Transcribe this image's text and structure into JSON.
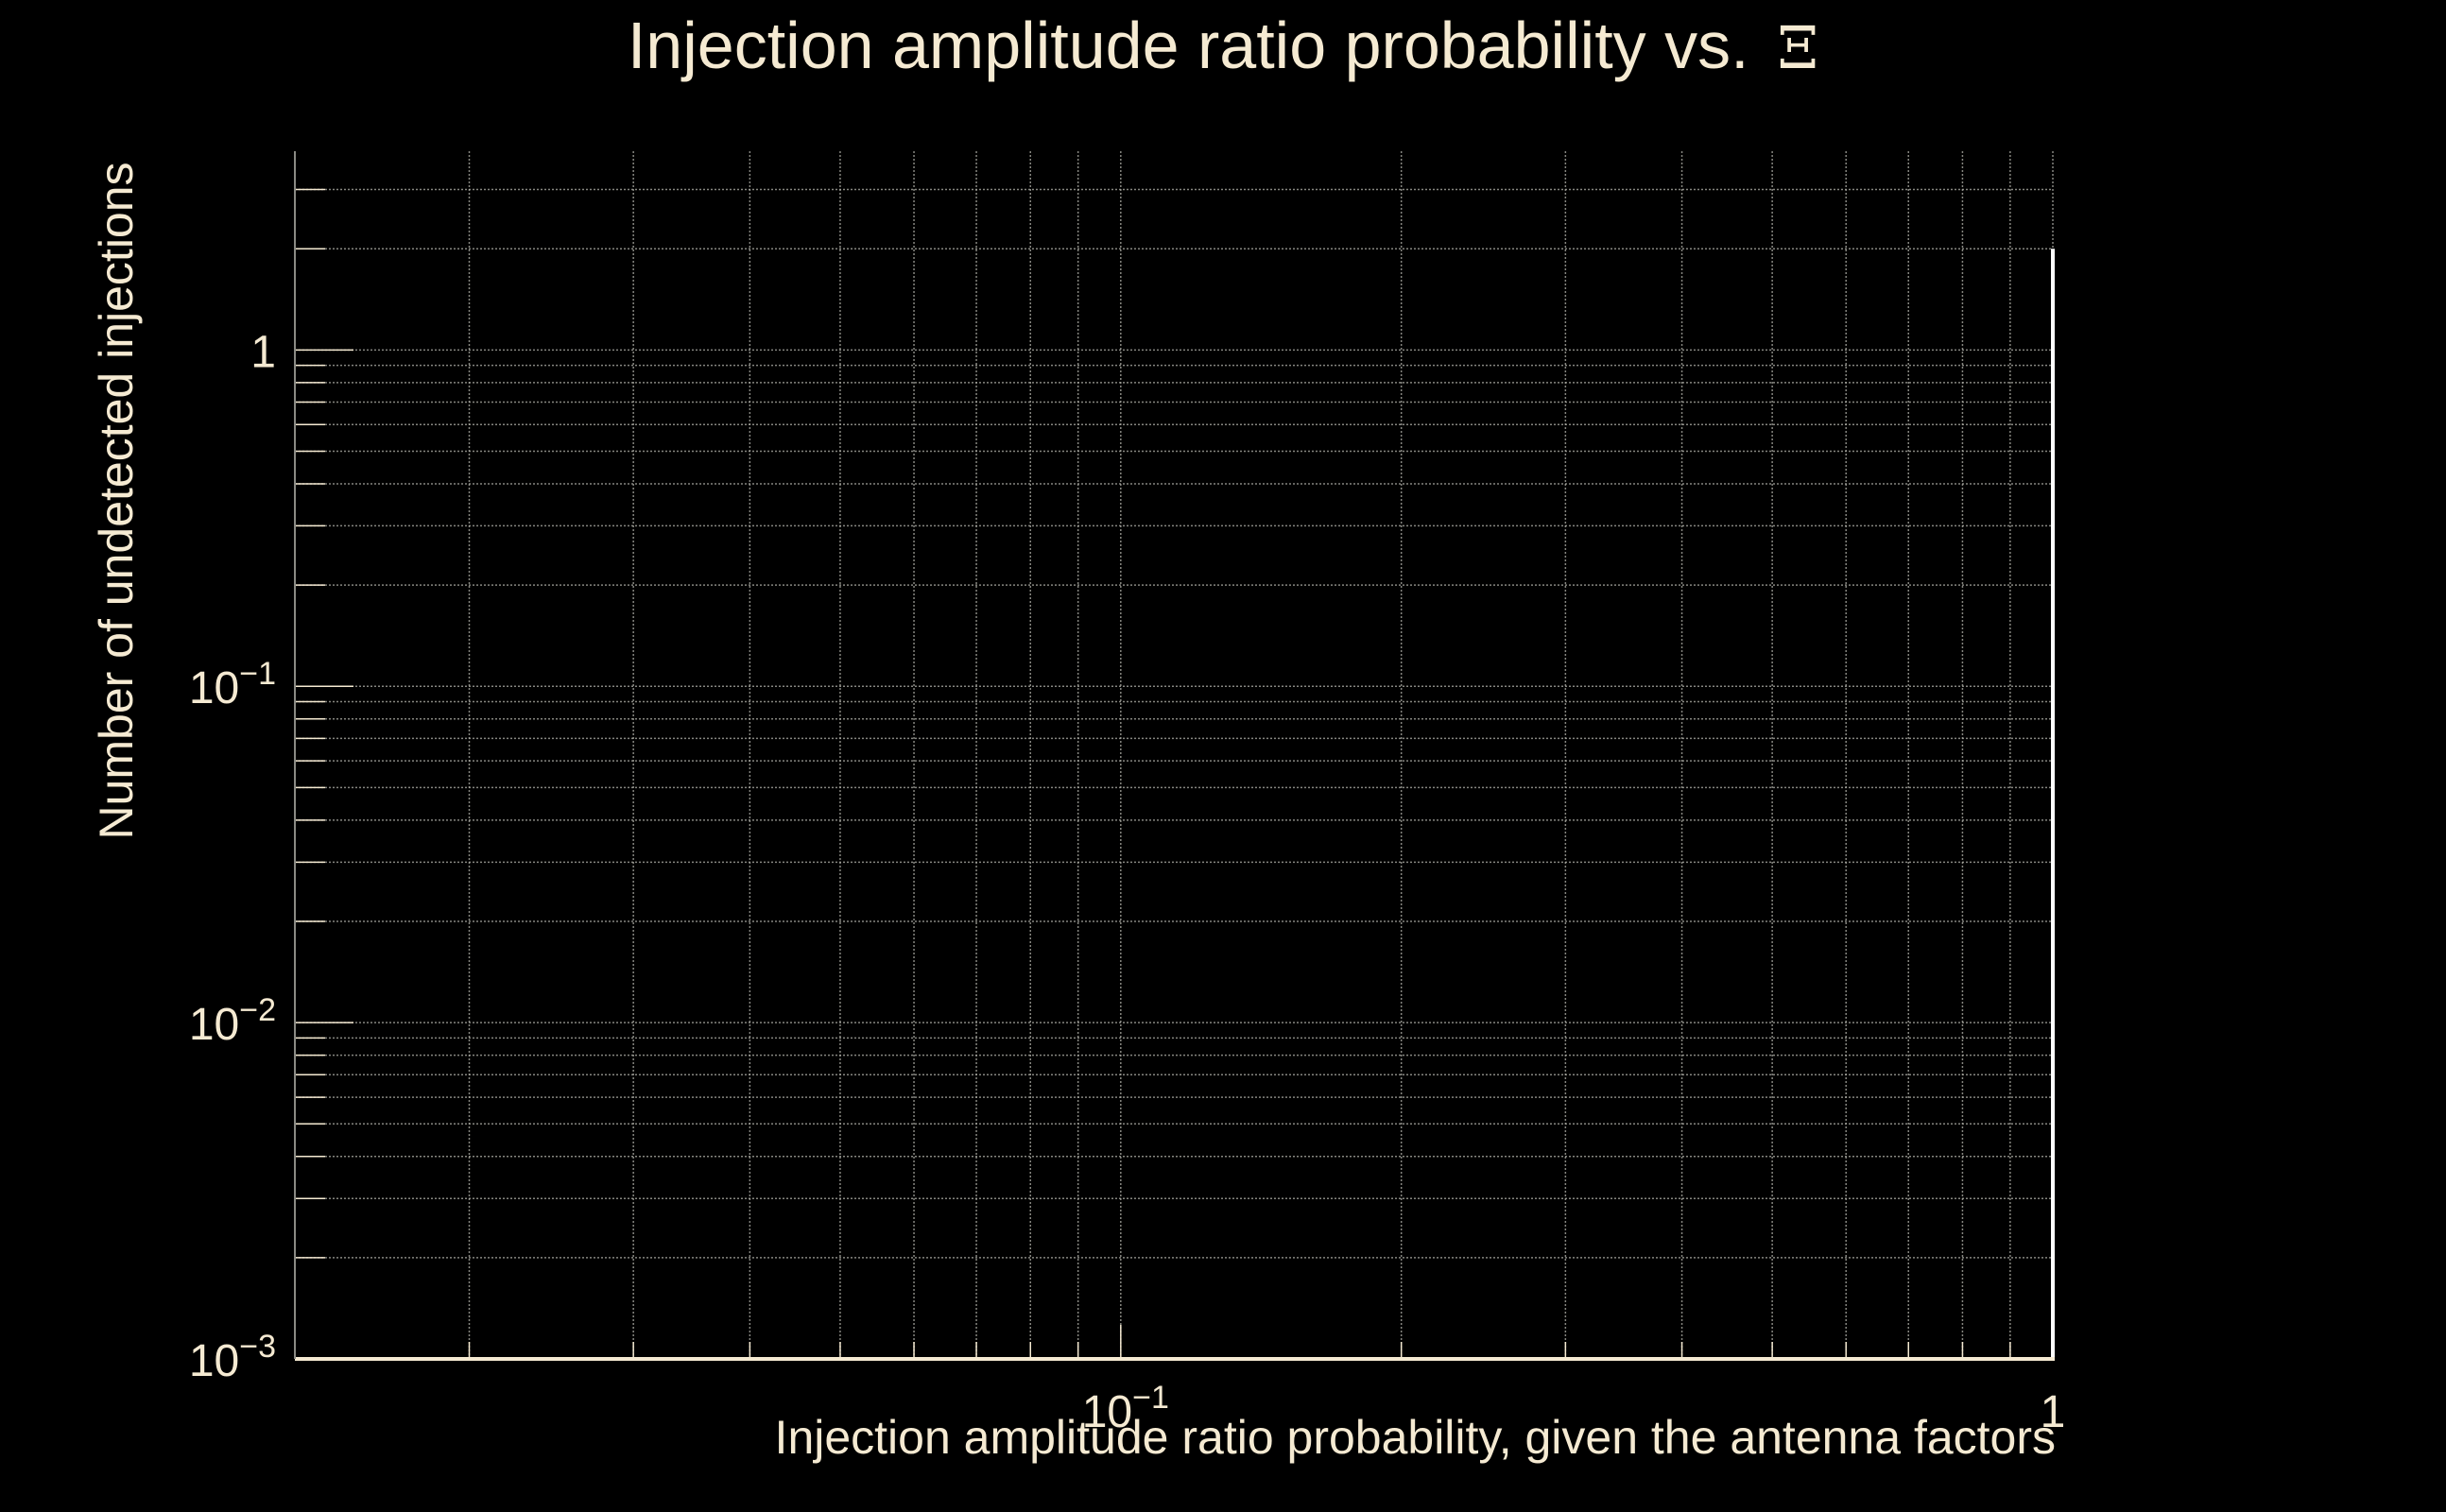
{
  "chart_data": {
    "type": "line",
    "title": "Injection amplitude ratio probability vs.",
    "title_symbol": "Ξ",
    "xlabel": "Injection amplitude ratio probability, given the antenna factors",
    "ylabel": "Number of undetected injections",
    "x_scale": "log",
    "y_scale": "log",
    "xlim": [
      0.013,
      1
    ],
    "ylim": [
      0.001,
      3.9
    ],
    "grid": true,
    "x_ticks": [
      {
        "value": 0.1,
        "mantissa": "10",
        "exponent": "−1"
      },
      {
        "value": 1,
        "mantissa": "1",
        "exponent": ""
      }
    ],
    "y_ticks": [
      {
        "value": 0.001,
        "mantissa": "10",
        "exponent": "−3"
      },
      {
        "value": 0.01,
        "mantissa": "10",
        "exponent": "−2"
      },
      {
        "value": 0.1,
        "mantissa": "10",
        "exponent": "−1"
      },
      {
        "value": 1,
        "mantissa": "1",
        "exponent": ""
      }
    ],
    "series": [
      {
        "x": [
          1,
          1
        ],
        "y": [
          0.001,
          2
        ]
      }
    ]
  },
  "colors": {
    "background": "#000000",
    "axis": "#f5ead2",
    "grid": "#a8a8a0",
    "series": "#ffffff"
  }
}
